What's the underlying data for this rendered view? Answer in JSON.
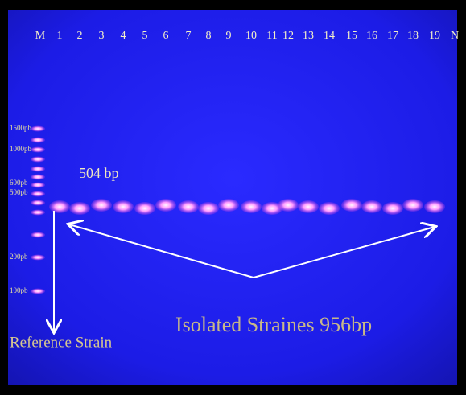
{
  "lane_labels": [
    "M",
    "1",
    "2",
    "3",
    "4",
    "5",
    "6",
    "7",
    "8",
    "9",
    "10",
    "11",
    "12",
    "13",
    "14",
    "15",
    "16",
    "17",
    "18",
    "19",
    "N"
  ],
  "ladder_labels": [
    "1500pb",
    "1000pb",
    "600pb",
    "500pb",
    "200pb",
    "100pb"
  ],
  "band_label": "504 bp",
  "reference_label": "Reference Strain",
  "isolated_label": "Isolated Straines 956bp"
}
